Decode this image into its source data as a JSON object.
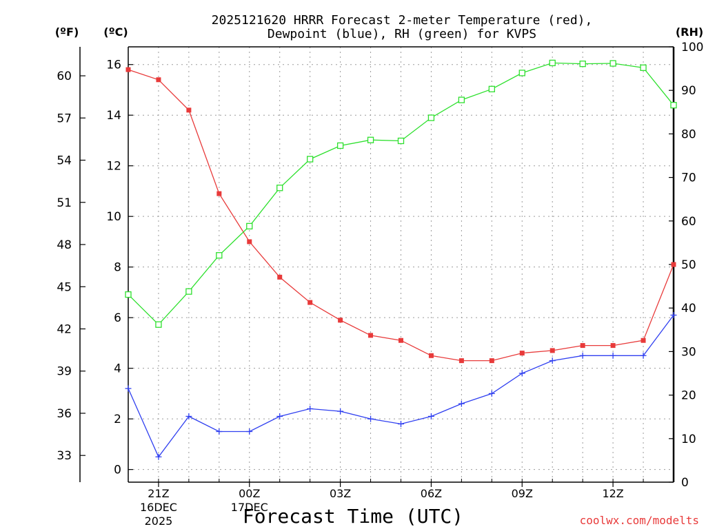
{
  "chart_data": {
    "type": "line",
    "title_line1": "2025121620 HRRR Forecast 2-meter Temperature (red),",
    "title_line2": "Dewpoint (blue), RH (green) for KVPS",
    "xlabel": "Forecast Time (UTC)",
    "watermark": "coolwx.com/modelts",
    "left_unit_f": "(ºF)",
    "left_unit_c": "(ºC)",
    "right_unit": "(RH)",
    "x_hours": [
      0,
      1,
      2,
      3,
      4,
      5,
      6,
      7,
      8,
      9,
      10,
      11,
      12,
      13,
      14,
      15,
      16,
      17,
      18
    ],
    "x_ticks": [
      {
        "hour": 1,
        "label": "21Z",
        "sub1": "16DEC",
        "sub2": "2025"
      },
      {
        "hour": 4,
        "label": "00Z",
        "sub1": "17DEC",
        "sub2": ""
      },
      {
        "hour": 7,
        "label": "03Z",
        "sub1": "",
        "sub2": ""
      },
      {
        "hour": 10,
        "label": "06Z",
        "sub1": "",
        "sub2": ""
      },
      {
        "hour": 13,
        "label": "09Z",
        "sub1": "",
        "sub2": ""
      },
      {
        "hour": 16,
        "label": "12Z",
        "sub1": "",
        "sub2": ""
      }
    ],
    "ylim_c": [
      -0.5,
      16.7
    ],
    "yticks_c": [
      0,
      2,
      4,
      6,
      8,
      10,
      12,
      14,
      16
    ],
    "yticks_f": [
      33,
      36,
      39,
      42,
      45,
      48,
      51,
      54,
      57,
      60
    ],
    "ylim_rh": [
      0,
      100
    ],
    "yticks_rh": [
      0,
      10,
      20,
      30,
      40,
      50,
      60,
      70,
      80,
      90,
      100
    ],
    "series": [
      {
        "name": "Temperature",
        "axis": "C",
        "color": "#e83a3a",
        "marker": "filled-square",
        "values": [
          15.8,
          15.4,
          14.2,
          10.9,
          9.0,
          7.6,
          6.6,
          5.9,
          5.3,
          5.1,
          4.5,
          4.3,
          4.3,
          4.6,
          4.7,
          4.9,
          4.9,
          5.1,
          8.1
        ]
      },
      {
        "name": "Dewpoint",
        "axis": "C",
        "color": "#2f3ff0",
        "marker": "plus",
        "values": [
          3.2,
          0.5,
          2.1,
          1.5,
          1.5,
          2.1,
          2.4,
          2.3,
          2.0,
          1.8,
          2.1,
          2.6,
          3.0,
          3.8,
          4.3,
          4.5,
          4.5,
          4.5,
          6.1
        ]
      },
      {
        "name": "RH",
        "axis": "RH",
        "color": "#2de02d",
        "marker": "open-square",
        "values": [
          43.1,
          36.2,
          43.8,
          52.1,
          58.8,
          67.6,
          74.2,
          77.3,
          78.6,
          78.4,
          83.7,
          87.8,
          90.3,
          94.0,
          96.3,
          96.1,
          96.2,
          95.2,
          86.6
        ]
      }
    ]
  }
}
